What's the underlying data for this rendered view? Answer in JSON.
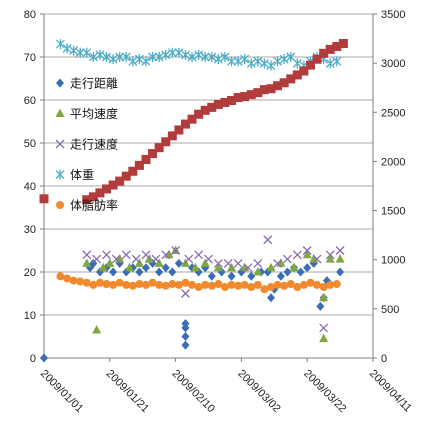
{
  "chart_data": {
    "type": "scatter",
    "title": "",
    "xlabel": "",
    "ylabel": "",
    "grid": "horizontal",
    "legend_position": "left",
    "x_ticks": [
      "2009/01/01",
      "2009/01/21",
      "2009/02/10",
      "2009/03/02",
      "2009/03/22",
      "2009/04/11"
    ],
    "y_left": {
      "range": [
        0,
        80
      ],
      "ticks": [
        "0",
        "10",
        "20",
        "30",
        "40",
        "50",
        "60",
        "70",
        "80"
      ]
    },
    "y_right": {
      "range": [
        0,
        3500
      ],
      "ticks": [
        "0",
        "500",
        "1000",
        "1500",
        "2000",
        "2500",
        "3000",
        "3500"
      ]
    },
    "series": [
      {
        "name": "走行距離",
        "axis": "left",
        "marker": "diamond",
        "color": "#3b6db5",
        "points": [
          [
            "2009-01-01",
            0
          ],
          [
            "2009-01-15",
            21
          ],
          [
            "2009-01-16",
            22
          ],
          [
            "2009-01-18",
            20
          ],
          [
            "2009-01-20",
            21
          ],
          [
            "2009-01-22",
            20
          ],
          [
            "2009-01-24",
            22
          ],
          [
            "2009-01-26",
            20
          ],
          [
            "2009-01-28",
            21
          ],
          [
            "2009-01-30",
            20
          ],
          [
            "2009-02-01",
            21
          ],
          [
            "2009-02-03",
            22
          ],
          [
            "2009-02-05",
            20
          ],
          [
            "2009-02-07",
            21
          ],
          [
            "2009-02-09",
            20
          ],
          [
            "2009-02-11",
            22
          ],
          [
            "2009-02-13",
            3
          ],
          [
            "2009-02-13",
            5
          ],
          [
            "2009-02-13",
            7
          ],
          [
            "2009-02-13",
            8
          ],
          [
            "2009-02-15",
            21
          ],
          [
            "2009-02-17",
            20
          ],
          [
            "2009-02-19",
            21
          ],
          [
            "2009-02-21",
            19
          ],
          [
            "2009-02-24",
            20
          ],
          [
            "2009-02-27",
            19
          ],
          [
            "2009-03-02",
            20
          ],
          [
            "2009-03-05",
            19
          ],
          [
            "2009-03-08",
            20
          ],
          [
            "2009-03-10",
            20
          ],
          [
            "2009-03-11",
            14
          ],
          [
            "2009-03-12",
            16
          ],
          [
            "2009-03-14",
            19
          ],
          [
            "2009-03-16",
            20
          ],
          [
            "2009-03-18",
            21
          ],
          [
            "2009-03-20",
            20
          ],
          [
            "2009-03-22",
            21
          ],
          [
            "2009-03-24",
            22
          ],
          [
            "2009-03-26",
            12
          ],
          [
            "2009-03-27",
            14
          ],
          [
            "2009-03-28",
            18
          ],
          [
            "2009-04-01",
            20
          ]
        ]
      },
      {
        "name": "平均速度",
        "axis": "left",
        "marker": "triangle",
        "color": "#7fa843",
        "points": [
          [
            "2009-01-14",
            22
          ],
          [
            "2009-01-17",
            6.5
          ],
          [
            "2009-01-19",
            21
          ],
          [
            "2009-01-21",
            22
          ],
          [
            "2009-01-24",
            23
          ],
          [
            "2009-01-27",
            21
          ],
          [
            "2009-01-30",
            22
          ],
          [
            "2009-02-02",
            23
          ],
          [
            "2009-02-05",
            22
          ],
          [
            "2009-02-08",
            24
          ],
          [
            "2009-02-10",
            25
          ],
          [
            "2009-02-13",
            22
          ],
          [
            "2009-02-16",
            21
          ],
          [
            "2009-02-19",
            22
          ],
          [
            "2009-02-23",
            21
          ],
          [
            "2009-02-27",
            21
          ],
          [
            "2009-03-03",
            21
          ],
          [
            "2009-03-07",
            20
          ],
          [
            "2009-03-11",
            21
          ],
          [
            "2009-03-14",
            22
          ],
          [
            "2009-03-18",
            21
          ],
          [
            "2009-03-22",
            24
          ],
          [
            "2009-03-24",
            23
          ],
          [
            "2009-03-27",
            14
          ],
          [
            "2009-03-27",
            4.5
          ],
          [
            "2009-03-29",
            23
          ],
          [
            "2009-04-01",
            23
          ]
        ]
      },
      {
        "name": "走行速度",
        "axis": "left",
        "marker": "x",
        "color": "#8a6bb0",
        "points": [
          [
            "2009-01-14",
            24
          ],
          [
            "2009-01-17",
            23
          ],
          [
            "2009-01-20",
            24
          ],
          [
            "2009-01-23",
            23
          ],
          [
            "2009-01-26",
            24
          ],
          [
            "2009-01-29",
            23
          ],
          [
            "2009-02-01",
            24
          ],
          [
            "2009-02-04",
            23
          ],
          [
            "2009-02-07",
            24
          ],
          [
            "2009-02-10",
            25
          ],
          [
            "2009-02-13",
            15
          ],
          [
            "2009-02-14",
            23
          ],
          [
            "2009-02-17",
            24
          ],
          [
            "2009-02-20",
            23
          ],
          [
            "2009-02-23",
            22
          ],
          [
            "2009-02-26",
            22
          ],
          [
            "2009-03-01",
            22
          ],
          [
            "2009-03-04",
            21
          ],
          [
            "2009-03-07",
            22
          ],
          [
            "2009-03-10",
            27.5
          ],
          [
            "2009-03-13",
            22
          ],
          [
            "2009-03-16",
            23
          ],
          [
            "2009-03-19",
            24
          ],
          [
            "2009-03-22",
            25
          ],
          [
            "2009-03-25",
            23
          ],
          [
            "2009-03-27",
            7
          ],
          [
            "2009-03-29",
            24
          ],
          [
            "2009-04-01",
            25
          ]
        ]
      },
      {
        "name": "体重",
        "axis": "left",
        "marker": "star",
        "color": "#4bacc6",
        "points": [
          [
            "2009-01-06",
            73
          ],
          [
            "2009-01-08",
            72
          ],
          [
            "2009-01-10",
            71.5
          ],
          [
            "2009-01-12",
            71
          ],
          [
            "2009-01-14",
            71
          ],
          [
            "2009-01-16",
            70
          ],
          [
            "2009-01-18",
            70.5
          ],
          [
            "2009-01-20",
            70
          ],
          [
            "2009-01-22",
            69.5
          ],
          [
            "2009-01-24",
            70
          ],
          [
            "2009-01-26",
            70
          ],
          [
            "2009-01-28",
            69
          ],
          [
            "2009-01-30",
            69.5
          ],
          [
            "2009-02-01",
            69
          ],
          [
            "2009-02-03",
            70
          ],
          [
            "2009-02-05",
            70
          ],
          [
            "2009-02-07",
            70.5
          ],
          [
            "2009-02-09",
            71
          ],
          [
            "2009-02-11",
            71
          ],
          [
            "2009-02-13",
            70.5
          ],
          [
            "2009-02-15",
            70
          ],
          [
            "2009-02-17",
            70.5
          ],
          [
            "2009-02-19",
            70
          ],
          [
            "2009-02-21",
            70
          ],
          [
            "2009-02-23",
            69.5
          ],
          [
            "2009-02-25",
            70
          ],
          [
            "2009-02-27",
            69
          ],
          [
            "2009-03-01",
            69
          ],
          [
            "2009-03-03",
            69.5
          ],
          [
            "2009-03-05",
            68.5
          ],
          [
            "2009-03-07",
            69
          ],
          [
            "2009-03-09",
            68.5
          ],
          [
            "2009-03-11",
            68
          ],
          [
            "2009-03-13",
            69
          ],
          [
            "2009-03-15",
            69.5
          ],
          [
            "2009-03-17",
            70
          ],
          [
            "2009-03-19",
            68.5
          ],
          [
            "2009-03-21",
            68
          ],
          [
            "2009-03-23",
            69
          ],
          [
            "2009-03-25",
            70
          ],
          [
            "2009-03-27",
            69.5
          ],
          [
            "2009-03-29",
            68.5
          ],
          [
            "2009-03-31",
            69
          ]
        ]
      },
      {
        "name": "体脂肪率",
        "axis": "left",
        "marker": "circle",
        "color": "#f08a2c",
        "points": [
          [
            "2009-01-06",
            19
          ],
          [
            "2009-01-08",
            18.5
          ],
          [
            "2009-01-10",
            18
          ],
          [
            "2009-01-12",
            17.8
          ],
          [
            "2009-01-14",
            17.5
          ],
          [
            "2009-01-16",
            17
          ],
          [
            "2009-01-18",
            17.5
          ],
          [
            "2009-01-20",
            17.2
          ],
          [
            "2009-01-22",
            17
          ],
          [
            "2009-01-24",
            17.5
          ],
          [
            "2009-01-26",
            17
          ],
          [
            "2009-01-28",
            16.8
          ],
          [
            "2009-01-30",
            17.2
          ],
          [
            "2009-02-01",
            17
          ],
          [
            "2009-02-03",
            17.5
          ],
          [
            "2009-02-05",
            17
          ],
          [
            "2009-02-07",
            16.8
          ],
          [
            "2009-02-09",
            17.2
          ],
          [
            "2009-02-11",
            17
          ],
          [
            "2009-02-13",
            17.5
          ],
          [
            "2009-02-15",
            17
          ],
          [
            "2009-02-17",
            16.5
          ],
          [
            "2009-02-19",
            17
          ],
          [
            "2009-02-21",
            16.8
          ],
          [
            "2009-02-23",
            17.2
          ],
          [
            "2009-02-25",
            16.5
          ],
          [
            "2009-02-27",
            17
          ],
          [
            "2009-03-01",
            16.8
          ],
          [
            "2009-03-03",
            17
          ],
          [
            "2009-03-05",
            16.5
          ],
          [
            "2009-03-07",
            17
          ],
          [
            "2009-03-09",
            16
          ],
          [
            "2009-03-11",
            16.5
          ],
          [
            "2009-03-13",
            17
          ],
          [
            "2009-03-15",
            16.8
          ],
          [
            "2009-03-17",
            17.2
          ],
          [
            "2009-03-19",
            16.5
          ],
          [
            "2009-03-21",
            17
          ],
          [
            "2009-03-23",
            17.5
          ],
          [
            "2009-03-25",
            17
          ],
          [
            "2009-03-27",
            16.5
          ],
          [
            "2009-03-29",
            17
          ],
          [
            "2009-03-31",
            17.2
          ]
        ]
      },
      {
        "name": "",
        "axis": "right",
        "marker": "square",
        "color": "#b23b3b",
        "points": [
          [
            "2009-01-01",
            1620
          ],
          [
            "2009-01-14",
            1610
          ],
          [
            "2009-01-16",
            1640
          ],
          [
            "2009-01-18",
            1680
          ],
          [
            "2009-01-20",
            1720
          ],
          [
            "2009-01-22",
            1760
          ],
          [
            "2009-01-24",
            1800
          ],
          [
            "2009-01-26",
            1850
          ],
          [
            "2009-01-28",
            1900
          ],
          [
            "2009-01-30",
            1960
          ],
          [
            "2009-02-01",
            2020
          ],
          [
            "2009-02-03",
            2080
          ],
          [
            "2009-02-05",
            2140
          ],
          [
            "2009-02-07",
            2200
          ],
          [
            "2009-02-09",
            2260
          ],
          [
            "2009-02-11",
            2320
          ],
          [
            "2009-02-13",
            2380
          ],
          [
            "2009-02-15",
            2430
          ],
          [
            "2009-02-17",
            2480
          ],
          [
            "2009-02-19",
            2520
          ],
          [
            "2009-02-21",
            2550
          ],
          [
            "2009-02-23",
            2580
          ],
          [
            "2009-02-25",
            2600
          ],
          [
            "2009-02-27",
            2620
          ],
          [
            "2009-03-01",
            2650
          ],
          [
            "2009-03-03",
            2660
          ],
          [
            "2009-03-05",
            2680
          ],
          [
            "2009-03-07",
            2700
          ],
          [
            "2009-03-09",
            2730
          ],
          [
            "2009-03-11",
            2740
          ],
          [
            "2009-03-13",
            2770
          ],
          [
            "2009-03-15",
            2800
          ],
          [
            "2009-03-17",
            2840
          ],
          [
            "2009-03-19",
            2880
          ],
          [
            "2009-03-21",
            2920
          ],
          [
            "2009-03-23",
            2980
          ],
          [
            "2009-03-25",
            3040
          ],
          [
            "2009-03-27",
            3100
          ],
          [
            "2009-03-29",
            3140
          ],
          [
            "2009-03-31",
            3170
          ],
          [
            "2009-04-02",
            3200
          ]
        ]
      }
    ]
  }
}
